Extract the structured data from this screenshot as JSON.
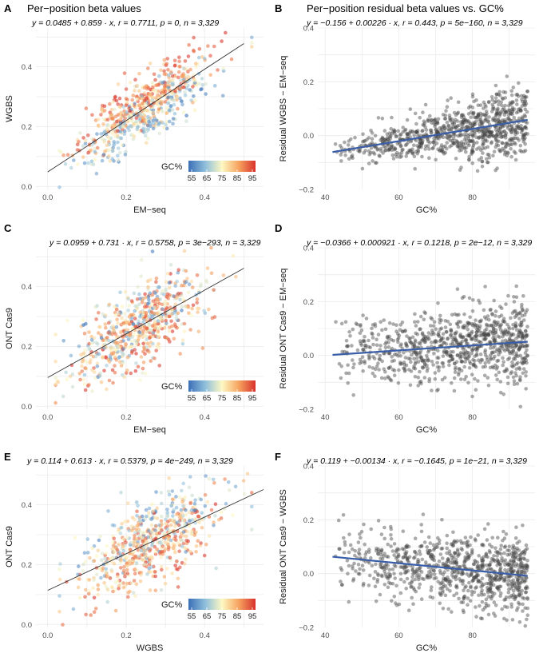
{
  "titles": {
    "left": "Per−position beta values",
    "right": "Per−position residual beta values vs. GC%"
  },
  "legend": {
    "title": "GC%",
    "ticks": [
      "55",
      "65",
      "75",
      "85",
      "95"
    ],
    "colors": [
      "#3b6fb6",
      "#8fbfdc",
      "#fdf8c3",
      "#f6a35f",
      "#d8322d"
    ]
  },
  "colors": {
    "line_left": "#333333",
    "line_right": "#3a5ea8",
    "point_right": "#444444"
  },
  "chart_data": [
    {
      "panel": "A",
      "type": "scatter",
      "equation": "y = 0.0485 + 0.859 · x, r = 0.7711, p = 0, n = 3,329",
      "xlabel": "EM−seq",
      "ylabel": "WGBS",
      "xlim": [
        -0.03,
        0.55
      ],
      "ylim": [
        -0.01,
        0.53
      ],
      "xticks": [
        "0.0",
        "0.2",
        "0.4"
      ],
      "xtick_values": [
        0,
        0.2,
        0.4
      ],
      "yticks": [
        "0.0",
        "0.2",
        "0.4"
      ],
      "ytick_values": [
        0,
        0.2,
        0.4
      ],
      "fit": {
        "intercept": 0.0485,
        "slope": 0.859,
        "x_range": [
          0.0,
          0.5
        ]
      },
      "sample": {
        "n_drawn": 650,
        "x_center": 0.25,
        "x_sd": 0.085,
        "x_range": [
          0.03,
          0.52
        ],
        "noise_sd": 0.045,
        "gc_effect": 0.0025,
        "gc_center": 77,
        "gc_range": [
          55,
          95
        ],
        "seed": 11
      },
      "legend_shown": true
    },
    {
      "panel": "B",
      "type": "scatter",
      "equation": "y = −0.156 + 0.00226 · x, r = 0.443, p = 5e−160, n = 3,329",
      "xlabel": "GC%",
      "ylabel": "Residual WGBS − EM−seq",
      "xlim": [
        38,
        97
      ],
      "ylim": [
        -0.2,
        0.4
      ],
      "xticks": [
        "40",
        "60",
        "80"
      ],
      "xtick_values": [
        40,
        60,
        80
      ],
      "yticks": [
        "−0.2",
        "0.0",
        "0.2",
        "0.4"
      ],
      "ytick_values": [
        -0.2,
        0,
        0.2,
        0.4
      ],
      "fit": {
        "intercept": -0.156,
        "slope": 0.00226,
        "x_range": [
          42,
          95
        ]
      },
      "sample": {
        "n_drawn": 900,
        "x_range": [
          42,
          95
        ],
        "noise_sd_low": 0.018,
        "noise_sd_high": 0.07,
        "seed": 21
      },
      "legend_shown": false
    },
    {
      "panel": "C",
      "type": "scatter",
      "equation": "y = 0.0959 + 0.731 · x, r = 0.5758, p = 3e−293, n = 3,329",
      "xlabel": "EM−seq",
      "ylabel": "ONT Cas9",
      "xlim": [
        -0.03,
        0.55
      ],
      "ylim": [
        -0.01,
        0.53
      ],
      "xticks": [
        "0.0",
        "0.2",
        "0.4"
      ],
      "xtick_values": [
        0,
        0.2,
        0.4
      ],
      "yticks": [
        "0.0",
        "0.2",
        "0.4"
      ],
      "ytick_values": [
        0,
        0.2,
        0.4
      ],
      "fit": {
        "intercept": 0.0959,
        "slope": 0.731,
        "x_range": [
          0.0,
          0.5
        ]
      },
      "sample": {
        "n_drawn": 650,
        "x_center": 0.23,
        "x_sd": 0.085,
        "x_range": [
          0.02,
          0.52
        ],
        "noise_sd": 0.065,
        "gc_effect": -0.0012,
        "gc_center": 77,
        "gc_range": [
          55,
          95
        ],
        "seed": 31
      },
      "legend_shown": true
    },
    {
      "panel": "D",
      "type": "scatter",
      "equation": "y = −0.0366 + 0.000921 · x, r = 0.1218, p = 2e−12, n = 3,329",
      "xlabel": "GC%",
      "ylabel": "Residual ONT Cas9 − EM−seq",
      "xlim": [
        38,
        97
      ],
      "ylim": [
        -0.2,
        0.4
      ],
      "xticks": [
        "40",
        "60",
        "80"
      ],
      "xtick_values": [
        40,
        60,
        80
      ],
      "yticks": [
        "−0.2",
        "0.0",
        "0.2",
        "0.4"
      ],
      "ytick_values": [
        -0.2,
        0,
        0.2,
        0.4
      ],
      "fit": {
        "intercept": -0.0366,
        "slope": 0.000921,
        "x_range": [
          42,
          95
        ]
      },
      "sample": {
        "n_drawn": 900,
        "x_range": [
          42,
          95
        ],
        "noise_sd_low": 0.06,
        "noise_sd_high": 0.075,
        "seed": 41
      },
      "legend_shown": false
    },
    {
      "panel": "E",
      "type": "scatter",
      "equation": "y = 0.114 + 0.613 · x, r = 0.5379, p = 4e−249, n = 3,329",
      "xlabel": "WGBS",
      "ylabel": "ONT Cas9",
      "xlim": [
        -0.03,
        0.55
      ],
      "ylim": [
        -0.01,
        0.53
      ],
      "xticks": [
        "0.0",
        "0.2",
        "0.4"
      ],
      "xtick_values": [
        0,
        0.2,
        0.4
      ],
      "yticks": [
        "0.0",
        "0.2",
        "0.4"
      ],
      "ytick_values": [
        0,
        0.2,
        0.4
      ],
      "fit": {
        "intercept": 0.114,
        "slope": 0.613,
        "x_range": [
          0.0,
          0.55
        ]
      },
      "sample": {
        "n_drawn": 650,
        "x_center": 0.26,
        "x_sd": 0.09,
        "x_range": [
          0.03,
          0.52
        ],
        "noise_sd": 0.065,
        "gc_effect": -0.002,
        "gc_center": 77,
        "gc_range": [
          55,
          95
        ],
        "seed": 51
      },
      "legend_shown": true
    },
    {
      "panel": "F",
      "type": "scatter",
      "equation": "y = 0.119 + −0.00134 · x, r = −0.1645, p = 1e−21, n = 3,329",
      "xlabel": "GC%",
      "ylabel": "Residual ONT Cas9 − WGBS",
      "xlim": [
        38,
        97
      ],
      "ylim": [
        -0.2,
        0.4
      ],
      "xticks": [
        "40",
        "60",
        "80"
      ],
      "xtick_values": [
        40,
        60,
        80
      ],
      "yticks": [
        "−0.2",
        "0.0",
        "0.2",
        "0.4"
      ],
      "ytick_values": [
        -0.2,
        0,
        0.2,
        0.4
      ],
      "fit": {
        "intercept": 0.119,
        "slope": -0.00134,
        "x_range": [
          42,
          95
        ]
      },
      "sample": {
        "n_drawn": 900,
        "x_range": [
          42,
          95
        ],
        "noise_sd_low": 0.06,
        "noise_sd_high": 0.075,
        "seed": 61
      },
      "legend_shown": false
    }
  ]
}
